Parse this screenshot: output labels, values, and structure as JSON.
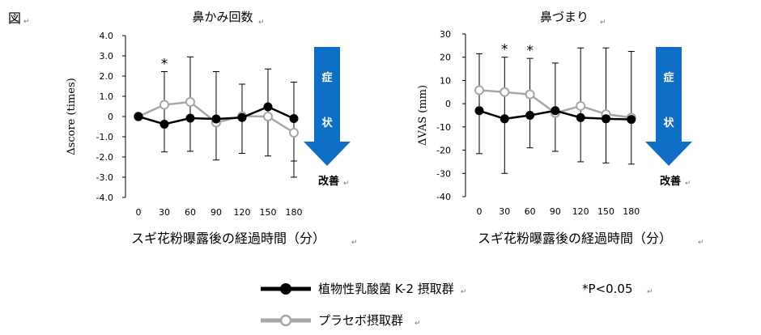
{
  "figure_label": "図",
  "edit_mark": "↵",
  "legend": {
    "k2": "植物性乳酸菌 K-2 摂取群",
    "placebo": "プラセボ摂取群",
    "significance": "*P<0.05"
  },
  "arrow": {
    "chars": [
      "症",
      "状"
    ],
    "caption": "改善"
  },
  "colors": {
    "k2": "#000000",
    "placebo": "#a6a6a6",
    "arrow": "#0f6fc6"
  },
  "chart_data": [
    {
      "type": "line",
      "title": "鼻かみ回数",
      "xlabel": "スギ花粉曝露後の経過時間（分）",
      "ylabel": "Δscore (times)",
      "x": [
        0,
        30,
        60,
        90,
        120,
        150,
        180
      ],
      "x_ticks": [
        "0",
        "30",
        "60",
        "90",
        "120",
        "150",
        "180"
      ],
      "ylim": [
        -4.0,
        4.0
      ],
      "y_ticks": [
        "4.0",
        "3.0",
        "2.0",
        "1.0",
        "0",
        "-1.0",
        "-2.0",
        "-3.0",
        "-4.0"
      ],
      "y_tick_values": [
        4,
        3,
        2,
        1,
        0,
        -1,
        -2,
        -3,
        -4
      ],
      "significance_x": [
        30
      ],
      "series": [
        {
          "name": "植物性乳酸菌 K-2 摂取群",
          "values": [
            0,
            -0.38,
            -0.08,
            -0.12,
            -0.05,
            0.48,
            -0.1
          ],
          "err_low": [
            null,
            -1.75,
            -1.72,
            -2.15,
            -1.82,
            -1.95,
            -2.2
          ],
          "err_high": [
            null,
            2.22,
            2.95,
            2.22,
            1.6,
            2.35,
            1.7
          ]
        },
        {
          "name": "プラセボ摂取群",
          "values": [
            0,
            0.58,
            0.72,
            -0.3,
            0.02,
            0.0,
            -0.8
          ],
          "err_low": [
            null,
            null,
            null,
            null,
            null,
            null,
            -3.0
          ],
          "err_high": [
            null,
            null,
            null,
            null,
            null,
            null,
            null
          ]
        }
      ]
    },
    {
      "type": "line",
      "title": "鼻づまり",
      "xlabel": "スギ花粉曝露後の経過時間（分）",
      "ylabel": "ΔVAS (mm)",
      "x": [
        0,
        30,
        60,
        90,
        120,
        150,
        180
      ],
      "x_ticks": [
        "0",
        "30",
        "60",
        "90",
        "120",
        "150",
        "180"
      ],
      "ylim": [
        -40,
        30
      ],
      "y_ticks": [
        "30",
        "20",
        "10",
        "0",
        "-10",
        "-20",
        "-30",
        "-40"
      ],
      "y_tick_values": [
        30,
        20,
        10,
        0,
        -10,
        -20,
        -30,
        -40
      ],
      "significance_x": [
        30,
        60
      ],
      "series": [
        {
          "name": "植物性乳酸菌 K-2 摂取群",
          "values": [
            -3.0,
            -6.5,
            -5.0,
            -3.0,
            -6.0,
            -6.5,
            -6.8
          ],
          "err_low": [
            -21.5,
            -30.0,
            -19.0,
            -20.5,
            -25.0,
            -25.5,
            -26.0
          ],
          "err_high": [
            21.5,
            20.0,
            19.5,
            17.5,
            24.0,
            24.0,
            22.5
          ]
        },
        {
          "name": "プラセボ摂取群",
          "values": [
            5.8,
            5.0,
            4.0,
            -4.0,
            -1.0,
            -4.5,
            -6.0
          ],
          "err_low": [
            null,
            null,
            null,
            null,
            null,
            null,
            null
          ],
          "err_high": [
            null,
            null,
            null,
            null,
            null,
            null,
            null
          ]
        }
      ]
    }
  ]
}
